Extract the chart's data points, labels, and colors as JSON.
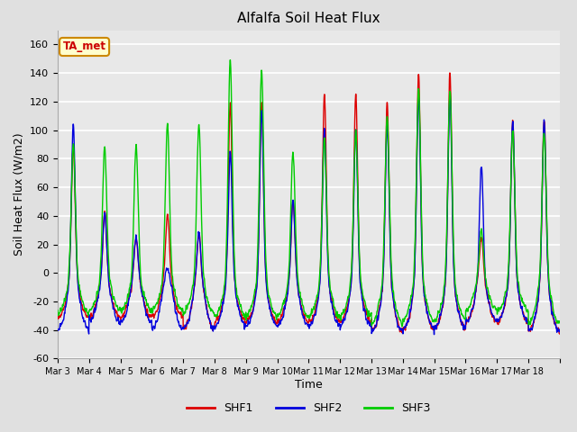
{
  "title": "Alfalfa Soil Heat Flux",
  "xlabel": "Time",
  "ylabel": "Soil Heat Flux (W/m2)",
  "ylim": [
    -60,
    170
  ],
  "yticks": [
    -60,
    -40,
    -20,
    0,
    20,
    40,
    60,
    80,
    100,
    120,
    140,
    160
  ],
  "background_color": "#e0e0e0",
  "plot_bg_color": "#e8e8e8",
  "grid_color": "#ffffff",
  "shf1_color": "#dd0000",
  "shf2_color": "#0000dd",
  "shf3_color": "#00cc00",
  "legend_box_color": "#ffffcc",
  "legend_box_edge": "#cc8800",
  "ta_met_text_color": "#cc0000",
  "n_days": 16,
  "points_per_day": 144,
  "start_day": 3
}
